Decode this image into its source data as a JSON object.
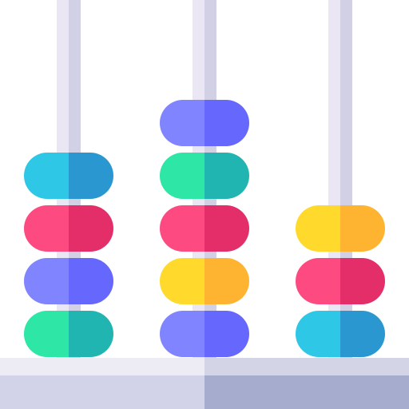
{
  "illustration": {
    "subject": "abacus-ring-stacking-icon",
    "palette": {
      "rod_light": "#EAE6F3",
      "rod_shade": "#D1D0E4",
      "base_top_light": "#EDEBF4",
      "base_top_shade": "#D4D4E7",
      "base_front_light": "#D2D3E8",
      "base_front_shade": "#A6ACCD"
    },
    "bead_colors": {
      "cyan": {
        "light": "#2EC8E6",
        "dark": "#2A97D1"
      },
      "pink": {
        "light": "#FD4B82",
        "dark": "#E42E6A"
      },
      "purple": {
        "light": "#8084FE",
        "dark": "#6567FD"
      },
      "green": {
        "light": "#2EE6A6",
        "dark": "#21B5B2"
      },
      "yellow": {
        "light": "#FFD92C",
        "dark": "#FFB431"
      }
    },
    "stacks": [
      {
        "name": "left-rod",
        "beads_top_to_bottom": [
          "cyan",
          "pink",
          "purple",
          "green"
        ]
      },
      {
        "name": "middle-rod",
        "beads_top_to_bottom": [
          "purple",
          "green",
          "pink",
          "yellow",
          "purple"
        ]
      },
      {
        "name": "right-rod",
        "beads_top_to_bottom": [
          "yellow",
          "pink",
          "cyan"
        ]
      }
    ]
  }
}
